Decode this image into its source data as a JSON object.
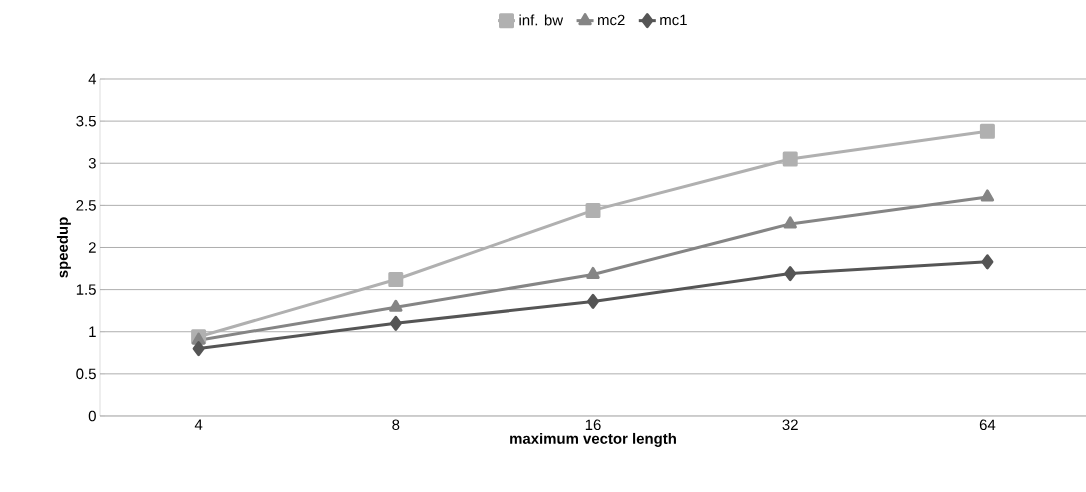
{
  "chart_data": {
    "type": "line",
    "xlabel": "maximum vector length",
    "ylabel": "speedup",
    "categories": [
      "4",
      "8",
      "16",
      "32",
      "64"
    ],
    "series": [
      {
        "name": "inf. bw",
        "color": "#b0b0b0",
        "marker": "square",
        "values": [
          0.94,
          1.62,
          2.44,
          3.05,
          3.38
        ]
      },
      {
        "name": "mc2",
        "color": "#858585",
        "marker": "triangle",
        "values": [
          0.9,
          1.29,
          1.68,
          2.28,
          2.6
        ]
      },
      {
        "name": "mc1",
        "color": "#555555",
        "marker": "diamond",
        "values": [
          0.8,
          1.1,
          1.36,
          1.69,
          1.83
        ]
      }
    ],
    "ylim": [
      0,
      4
    ],
    "yticks": [
      0,
      0.5,
      1,
      1.5,
      2,
      2.5,
      3,
      3.5,
      4
    ],
    "grid": "y",
    "legend": "top",
    "line_style": "solid"
  }
}
